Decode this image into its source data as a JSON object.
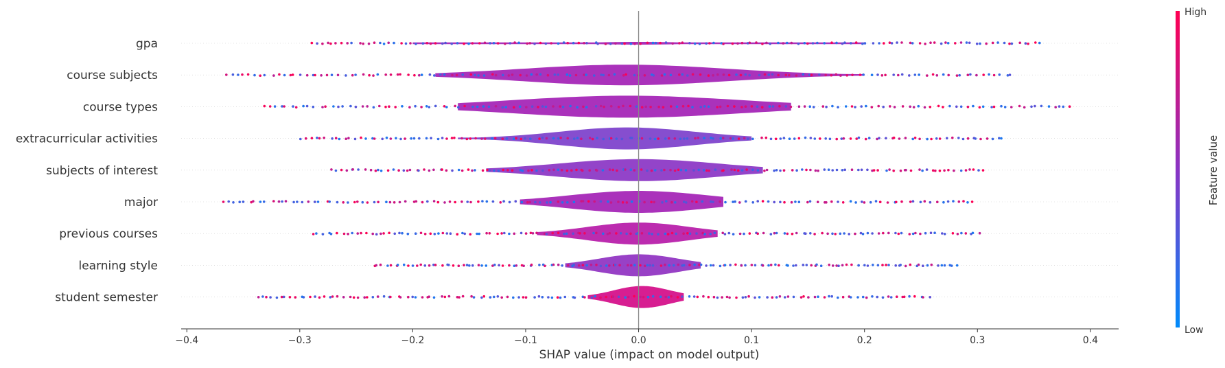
{
  "chart_data": {
    "type": "violin",
    "xlabel": "SHAP value (impact on model output)",
    "xlim": [
      -0.405,
      0.425
    ],
    "xticks": [
      -0.4,
      -0.3,
      -0.2,
      -0.1,
      0.0,
      0.1,
      0.2,
      0.3,
      0.4
    ],
    "xtick_labels": [
      "−0.4",
      "−0.3",
      "−0.2",
      "−0.1",
      "0.0",
      "0.1",
      "0.2",
      "0.3",
      "0.4"
    ],
    "colorbar": {
      "title": "Feature value",
      "high_label": "High",
      "low_label": "Low",
      "high_color": "#ff0052",
      "low_color": "#008bfb"
    },
    "features": [
      {
        "name": "gpa",
        "min": -0.29,
        "max": 0.355,
        "peak": 0.0,
        "spread": 0.04,
        "violin_range": [
          -0.2,
          0.2
        ],
        "max_half_width": 2,
        "body_color": "#a321b5"
      },
      {
        "name": "course subjects",
        "min": -0.365,
        "max": 0.33,
        "peak": -0.012,
        "spread": 0.09,
        "violin_range": [
          -0.18,
          0.2
        ],
        "max_half_width": 15,
        "body_color": "#a321b5"
      },
      {
        "name": "course types",
        "min": -0.333,
        "max": 0.383,
        "peak": -0.01,
        "spread": 0.1,
        "violin_range": [
          -0.16,
          0.135
        ],
        "max_half_width": 16,
        "body_color": "#a321b5"
      },
      {
        "name": "extracurricular activities",
        "min": -0.3,
        "max": 0.322,
        "peak": -0.01,
        "spread": 0.06,
        "violin_range": [
          -0.16,
          0.1
        ],
        "max_half_width": 16,
        "body_color": "#7c3fcb"
      },
      {
        "name": "subjects of interest",
        "min": -0.272,
        "max": 0.305,
        "peak": 0.0,
        "spread": 0.07,
        "violin_range": [
          -0.135,
          0.11
        ],
        "max_half_width": 16,
        "body_color": "#8a34c4"
      },
      {
        "name": "major",
        "min": -0.368,
        "max": 0.297,
        "peak": 0.0,
        "spread": 0.06,
        "violin_range": [
          -0.105,
          0.075
        ],
        "max_half_width": 16,
        "body_color": "#a321b5"
      },
      {
        "name": "previous courses",
        "min": -0.288,
        "max": 0.302,
        "peak": 0.0,
        "spread": 0.045,
        "violin_range": [
          -0.09,
          0.07
        ],
        "max_half_width": 16,
        "body_color": "#b61aa8"
      },
      {
        "name": "learning style",
        "min": -0.234,
        "max": 0.282,
        "peak": 0.0,
        "spread": 0.035,
        "violin_range": [
          -0.065,
          0.055
        ],
        "max_half_width": 16,
        "body_color": "#8f31c1"
      },
      {
        "name": "student semester",
        "min": -0.338,
        "max": 0.258,
        "peak": 0.003,
        "spread": 0.025,
        "violin_range": [
          -0.045,
          0.04
        ],
        "max_half_width": 16,
        "body_color": "#d40b88"
      }
    ]
  }
}
